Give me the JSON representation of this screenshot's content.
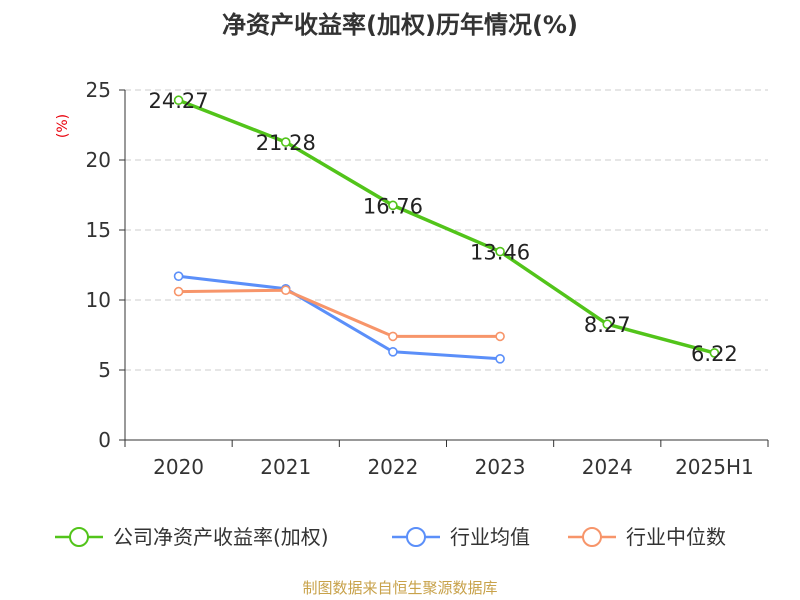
{
  "chart_data": {
    "type": "line",
    "title": "净资产收益率(加权)历年情况(%)",
    "ylabel": "(%)",
    "xlabel": "",
    "categories": [
      "2020",
      "2021",
      "2022",
      "2023",
      "2024",
      "2025H1"
    ],
    "ylim": [
      0,
      25
    ],
    "yticks": [
      0,
      5,
      10,
      15,
      20,
      25
    ],
    "grid": "horizontal-dashed",
    "legend_position": "bottom",
    "series": [
      {
        "name": "公司净资产收益率(加权)",
        "color": "#52c41a",
        "values": [
          24.27,
          21.28,
          16.76,
          13.46,
          8.27,
          6.22
        ],
        "labels": [
          "24.27",
          "21.28",
          "16.76",
          "13.46",
          "8.27",
          "6.22"
        ]
      },
      {
        "name": "行业均值",
        "color": "#5b8ff9",
        "values": [
          11.7,
          10.8,
          6.3,
          5.8,
          null,
          null
        ]
      },
      {
        "name": "行业中位数",
        "color": "#f7956a",
        "values": [
          10.6,
          10.7,
          7.4,
          7.4,
          null,
          null
        ]
      }
    ],
    "source": "制图数据来自恒生聚源数据库"
  }
}
